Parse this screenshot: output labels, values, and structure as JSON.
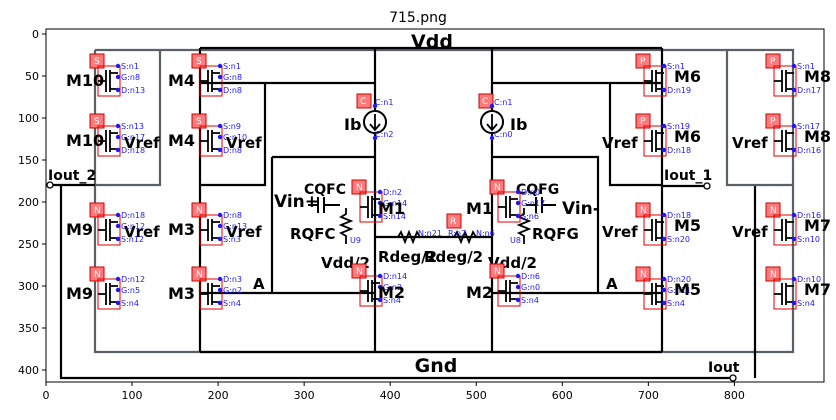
{
  "figure": {
    "title": "715.png",
    "x_ticks": [
      "0",
      "100",
      "200",
      "300",
      "400",
      "500",
      "600",
      "700",
      "800"
    ],
    "y_ticks": [
      "0",
      "50",
      "100",
      "150",
      "200",
      "250",
      "300",
      "350",
      "400"
    ]
  },
  "schematic": {
    "rails": {
      "vdd": "Vdd",
      "gnd": "Gnd"
    },
    "ports": {
      "iout_2": "Iout_2",
      "iout_1": "Iout_1",
      "iout": "Iout",
      "vin_plus": "Vin+",
      "vin_minus": "Vin-"
    },
    "node_labels": {
      "a_left": "A",
      "a_right": "A"
    },
    "current_sources": [
      {
        "label": "Ib",
        "pin_top": "C:n1",
        "pin_bottom": "C:n2"
      },
      {
        "label": "Ib",
        "pin_top": "C:n1",
        "pin_bottom": "C:n0"
      }
    ],
    "transistors": [
      {
        "id": "m10a",
        "label": "M10",
        "pins": [
          "S:n1",
          "G:n8",
          "D:n13"
        ],
        "gate": ""
      },
      {
        "id": "m4a",
        "label": "M4",
        "pins": [
          "S:n1",
          "G:n8",
          "D:n8"
        ],
        "gate": ""
      },
      {
        "id": "m10b",
        "label": "M10",
        "pins": [
          "S:n13",
          "G:n17",
          "D:n18"
        ],
        "gate": "Vref"
      },
      {
        "id": "m4b",
        "label": "M4",
        "pins": [
          "S:n9",
          "G:n10",
          "D:n8"
        ],
        "gate": "Vref"
      },
      {
        "id": "m9a",
        "label": "M9",
        "pins": [
          "D:n18",
          "G:n12",
          "S:n12"
        ],
        "gate": "Vref"
      },
      {
        "id": "m3a",
        "label": "M3",
        "pins": [
          "D:n8",
          "G:n13",
          "S:n3"
        ],
        "gate": "Vref"
      },
      {
        "id": "m9b",
        "label": "M9",
        "pins": [
          "D:n12",
          "G:n5",
          "S:n4"
        ],
        "gate": ""
      },
      {
        "id": "m3b",
        "label": "M3",
        "pins": [
          "D:n3",
          "G:n2",
          "S:n4"
        ],
        "gate": ""
      },
      {
        "id": "m1a",
        "label": "M1",
        "pins": [
          "D:n2",
          "G:n14",
          "S:n14"
        ],
        "gate": ""
      },
      {
        "id": "m2a",
        "label": "M2",
        "pins": [
          "D:n14",
          "G:n2",
          "S:n4"
        ],
        "gate": ""
      },
      {
        "id": "m1b",
        "label": "M1",
        "pins": [
          "D:n0",
          "G:n17",
          "S:n6"
        ],
        "gate": ""
      },
      {
        "id": "m2b",
        "label": "M2",
        "pins": [
          "D:n6",
          "G:n0",
          "S:n4"
        ],
        "gate": ""
      },
      {
        "id": "m6a",
        "label": "M6",
        "pins": [
          "S:n1",
          "D:n19"
        ],
        "gate": ""
      },
      {
        "id": "m8a",
        "label": "M8",
        "pins": [
          "S:n1",
          "D:n17"
        ],
        "gate": ""
      },
      {
        "id": "m6b",
        "label": "M6",
        "pins": [
          "S:n19",
          "D:n18"
        ],
        "gate": "Vref"
      },
      {
        "id": "m8b",
        "label": "M8",
        "pins": [
          "S:n17",
          "D:n16"
        ],
        "gate": "Vref"
      },
      {
        "id": "m5a",
        "label": "M5",
        "pins": [
          "D:n18",
          "S:n20"
        ],
        "gate": "Vref"
      },
      {
        "id": "m7a",
        "label": "M7",
        "pins": [
          "D:n16",
          "S:n10"
        ],
        "gate": "Vref"
      },
      {
        "id": "m5b",
        "label": "M5",
        "pins": [
          "D:n20",
          "G:n11",
          "S:n4"
        ],
        "gate": ""
      },
      {
        "id": "m7b",
        "label": "M7",
        "pins": [
          "D:n10",
          "S:n4"
        ],
        "gate": ""
      }
    ],
    "passives": [
      {
        "id": "cqfc_l",
        "label": "CQFC"
      },
      {
        "id": "cqfc_r",
        "label": "CQFG"
      },
      {
        "id": "rqfc_l",
        "label": "RQFC"
      },
      {
        "id": "rqfc_r",
        "label": "RQFG"
      },
      {
        "id": "rdeg_l",
        "label": "Rdeg/2"
      },
      {
        "id": "rdeg_r",
        "label": "Rdeg/2"
      },
      {
        "id": "vdd2_l",
        "label": "Vdd/2"
      },
      {
        "id": "vdd2_r",
        "label": "Vdd/2"
      }
    ],
    "misc_net_labels": [
      "N:n21",
      "R:n2",
      "N:n6",
      "U9",
      "U8"
    ]
  }
}
